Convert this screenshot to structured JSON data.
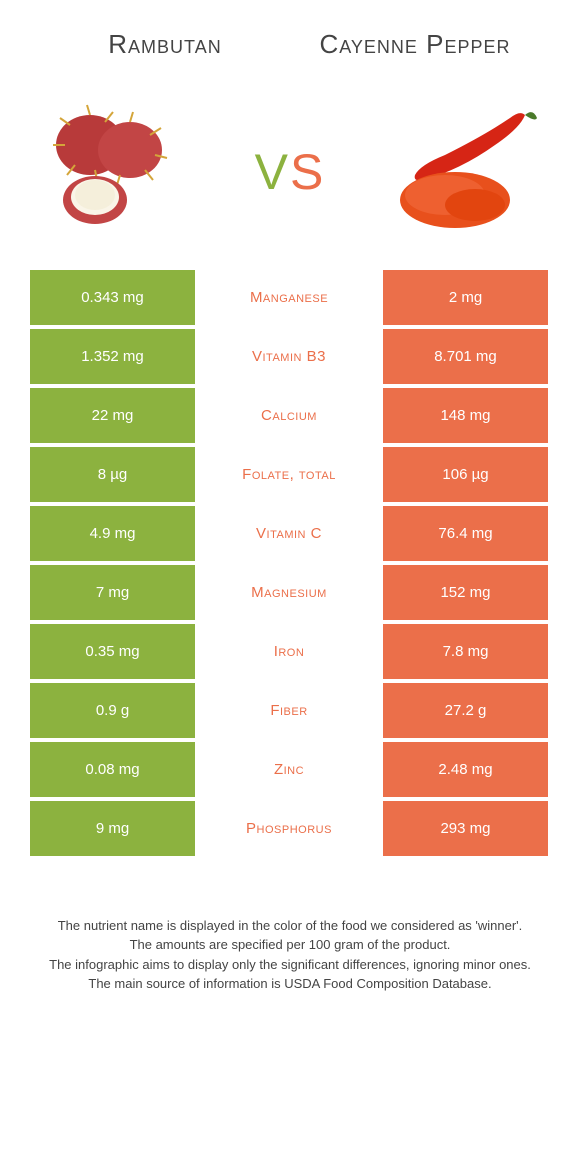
{
  "colors": {
    "left": "#8cb23f",
    "right": "#eb6f4a",
    "text": "#444444",
    "vs_left": "#8cb23f",
    "vs_right": "#eb6f4a"
  },
  "left_food": "Rambutan",
  "right_food": "Cayenne Pepper",
  "vs_label": "vs",
  "rows": [
    {
      "nutrient": "Manganese",
      "left": "0.343 mg",
      "right": "2 mg",
      "winner": "right"
    },
    {
      "nutrient": "Vitamin B3",
      "left": "1.352 mg",
      "right": "8.701 mg",
      "winner": "right"
    },
    {
      "nutrient": "Calcium",
      "left": "22 mg",
      "right": "148 mg",
      "winner": "right"
    },
    {
      "nutrient": "Folate, total",
      "left": "8 µg",
      "right": "106 µg",
      "winner": "right"
    },
    {
      "nutrient": "Vitamin C",
      "left": "4.9 mg",
      "right": "76.4 mg",
      "winner": "right"
    },
    {
      "nutrient": "Magnesium",
      "left": "7 mg",
      "right": "152 mg",
      "winner": "right"
    },
    {
      "nutrient": "Iron",
      "left": "0.35 mg",
      "right": "7.8 mg",
      "winner": "right"
    },
    {
      "nutrient": "Fiber",
      "left": "0.9 g",
      "right": "27.2 g",
      "winner": "right"
    },
    {
      "nutrient": "Zinc",
      "left": "0.08 mg",
      "right": "2.48 mg",
      "winner": "right"
    },
    {
      "nutrient": "Phosphorus",
      "left": "9 mg",
      "right": "293 mg",
      "winner": "right"
    }
  ],
  "footnotes": [
    "The nutrient name is displayed in the color of the food we considered as 'winner'.",
    "The amounts are specified per 100 gram of the product.",
    "The infographic aims to display only the significant differences, ignoring minor ones.",
    "The main source of information is USDA Food Composition Database."
  ]
}
